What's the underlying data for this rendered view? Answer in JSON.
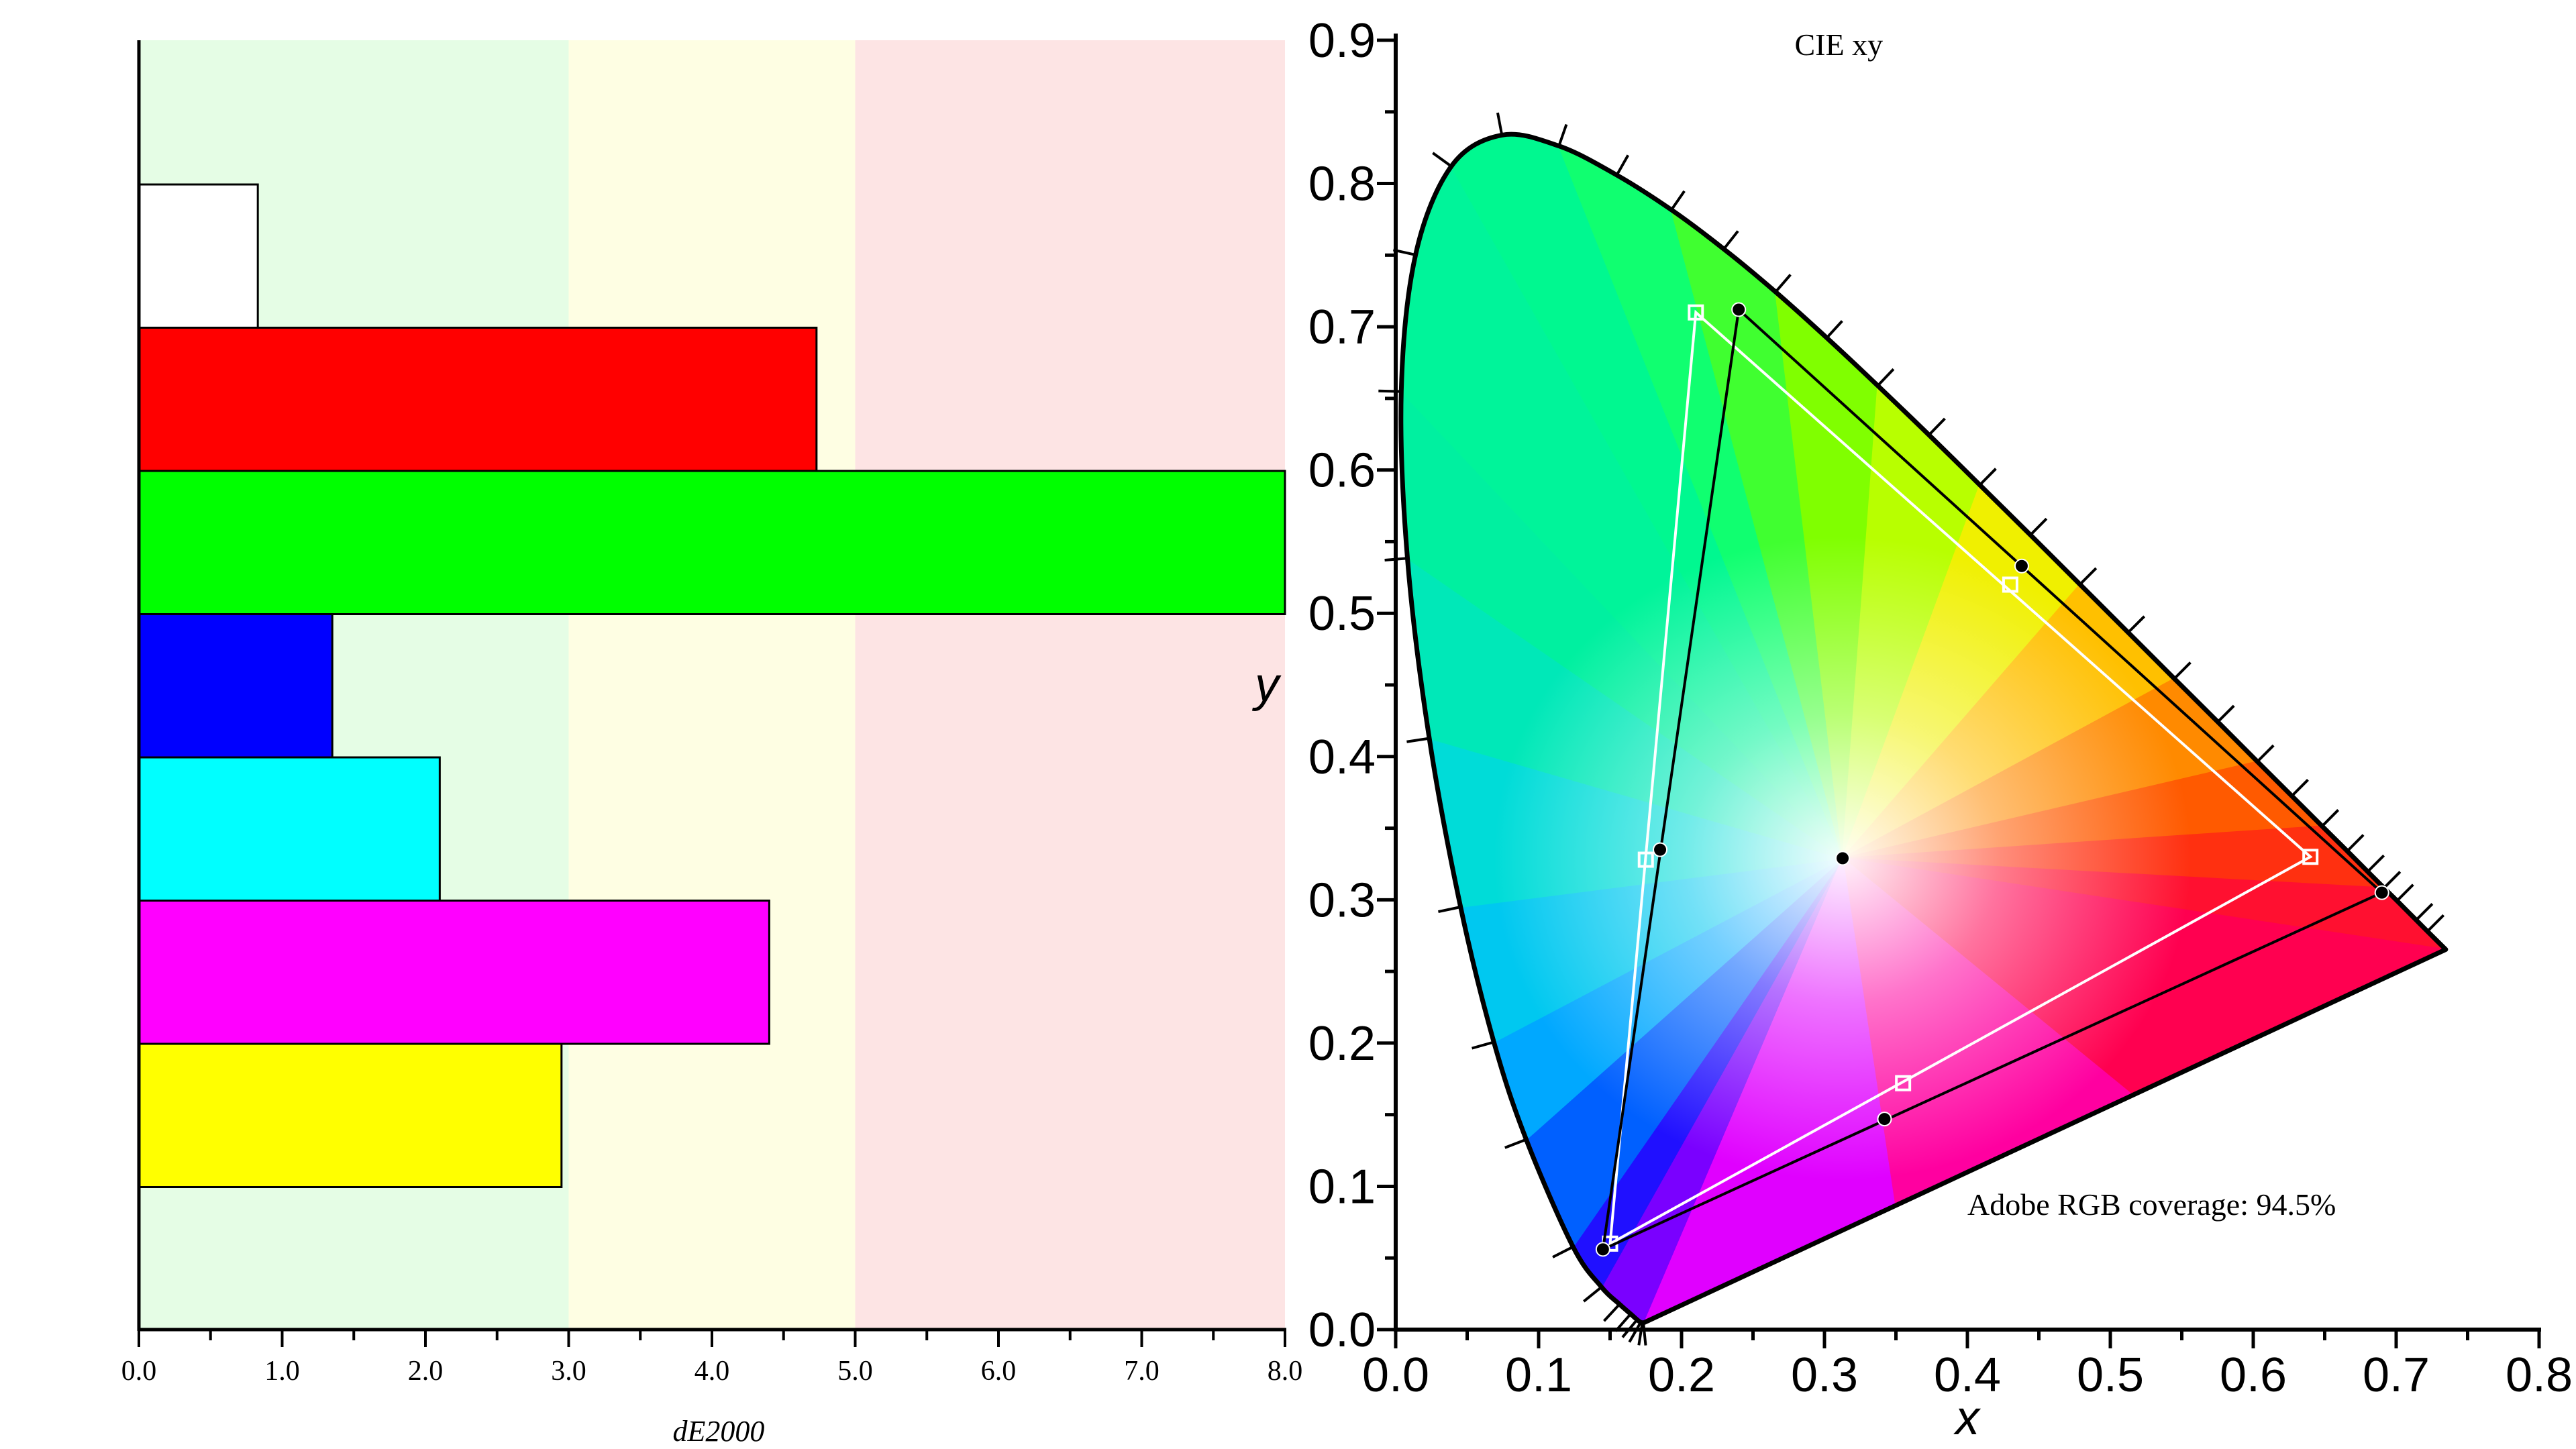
{
  "chart_data": [
    {
      "type": "bar",
      "orientation": "horizontal",
      "categories": [
        "white",
        "red",
        "green",
        "blue",
        "cyan",
        "magenta",
        "yellow"
      ],
      "values": [
        0.83,
        4.73,
        8.0,
        1.35,
        2.1,
        4.4,
        2.95
      ],
      "bar_colors": [
        "#ffffff",
        "#ff0000",
        "#00ff00",
        "#0000ff",
        "#00ffff",
        "#ff00ff",
        "#ffff00"
      ],
      "xlabel": "dE2000",
      "xlim": [
        0,
        8
      ],
      "x_ticks": [
        "0.0",
        "1.0",
        "2.0",
        "3.0",
        "4.0",
        "5.0",
        "6.0",
        "7.0",
        "8.0"
      ],
      "bands": [
        {
          "from": 0,
          "to": 3,
          "color": "#e5fde5"
        },
        {
          "from": 3,
          "to": 5,
          "color": "#fefee3"
        },
        {
          "from": 5,
          "to": 8,
          "color": "#fde4e4"
        }
      ]
    },
    {
      "type": "scatter",
      "title": "CIE xy",
      "xlabel": "x",
      "ylabel": "y",
      "xlim": [
        0,
        0.8
      ],
      "ylim": [
        0,
        0.9
      ],
      "x_ticks": [
        "0.0",
        "0.1",
        "0.2",
        "0.3",
        "0.4",
        "0.5",
        "0.6",
        "0.7",
        "0.8"
      ],
      "y_ticks": [
        "0.0",
        "0.1",
        "0.2",
        "0.3",
        "0.4",
        "0.5",
        "0.6",
        "0.7",
        "0.8",
        "0.9"
      ],
      "annotation": "Adobe RGB coverage: 94.5%",
      "spectral_locus": [
        [
          0.1741,
          0.005
        ],
        [
          0.1738,
          0.0049
        ],
        [
          0.1736,
          0.0049
        ],
        [
          0.1733,
          0.0048
        ],
        [
          0.1726,
          0.0048
        ],
        [
          0.1714,
          0.0051
        ],
        [
          0.1689,
          0.0069
        ],
        [
          0.1644,
          0.0109
        ],
        [
          0.1566,
          0.0177
        ],
        [
          0.144,
          0.0297
        ],
        [
          0.1241,
          0.0578
        ],
        [
          0.0913,
          0.1327
        ],
        [
          0.0687,
          0.2007
        ],
        [
          0.0454,
          0.295
        ],
        [
          0.0235,
          0.4127
        ],
        [
          0.0082,
          0.5384
        ],
        [
          0.0039,
          0.6548
        ],
        [
          0.0139,
          0.7502
        ],
        [
          0.0389,
          0.812
        ],
        [
          0.0743,
          0.8338
        ],
        [
          0.1142,
          0.8262
        ],
        [
          0.1547,
          0.8059
        ],
        [
          0.1929,
          0.7816
        ],
        [
          0.2296,
          0.7543
        ],
        [
          0.2658,
          0.7243
        ],
        [
          0.3016,
          0.6923
        ],
        [
          0.3373,
          0.6589
        ],
        [
          0.3731,
          0.6245
        ],
        [
          0.4087,
          0.5896
        ],
        [
          0.4441,
          0.5547
        ],
        [
          0.4788,
          0.5202
        ],
        [
          0.5125,
          0.4866
        ],
        [
          0.5448,
          0.4544
        ],
        [
          0.5752,
          0.4242
        ],
        [
          0.6029,
          0.3965
        ],
        [
          0.627,
          0.3725
        ],
        [
          0.6482,
          0.3514
        ],
        [
          0.6658,
          0.334
        ],
        [
          0.6801,
          0.3197
        ],
        [
          0.6915,
          0.3083
        ],
        [
          0.7006,
          0.2993
        ],
        [
          0.714,
          0.2859
        ],
        [
          0.7219,
          0.278
        ],
        [
          0.7347,
          0.2653
        ]
      ],
      "series": [
        {
          "role": "reference",
          "marker": "open-square",
          "color": "#ffffff",
          "triangle": [
            [
              0.64,
              0.33
            ],
            [
              0.21,
              0.71
            ],
            [
              0.15,
              0.06
            ]
          ],
          "points": [
            [
              0.64,
              0.33
            ],
            [
              0.21,
              0.71
            ],
            [
              0.15,
              0.06
            ],
            [
              0.43,
              0.52
            ],
            [
              0.175,
              0.328
            ],
            [
              0.355,
              0.172
            ]
          ]
        },
        {
          "role": "measured",
          "marker": "filled-circle",
          "color": "#000000",
          "triangle": [
            [
              0.69,
              0.305
            ],
            [
              0.24,
              0.712
            ],
            [
              0.145,
              0.056
            ]
          ],
          "points": [
            [
              0.69,
              0.305
            ],
            [
              0.24,
              0.712
            ],
            [
              0.145,
              0.056
            ],
            [
              0.438,
              0.533
            ],
            [
              0.185,
              0.335
            ],
            [
              0.342,
              0.147
            ],
            [
              0.3127,
              0.329
            ]
          ]
        }
      ]
    }
  ]
}
